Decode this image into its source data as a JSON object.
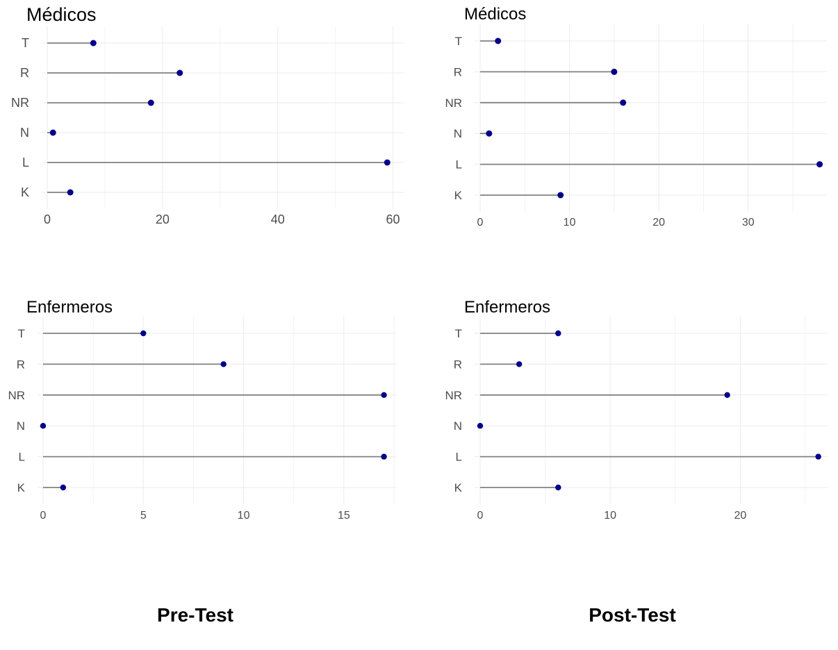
{
  "captions": {
    "left": "Pre-Test",
    "right": "Post-Test"
  },
  "colors": {
    "point": "#00008B",
    "segment": "#808080",
    "grid": "#ebebeb"
  },
  "chart_data": [
    {
      "type": "lollipop",
      "title": "Médicos",
      "categories": [
        "T",
        "R",
        "NR",
        "N",
        "L",
        "K"
      ],
      "values": [
        8,
        23,
        18,
        1,
        59,
        4
      ],
      "xlim": [
        0,
        61.5
      ],
      "xticks": [
        0,
        20,
        40,
        60
      ],
      "grid": true
    },
    {
      "type": "lollipop",
      "title": "Médicos",
      "categories": [
        "T",
        "R",
        "NR",
        "N",
        "L",
        "K"
      ],
      "values": [
        2,
        15,
        16,
        1,
        38,
        9
      ],
      "xlim": [
        0,
        38.5
      ],
      "xticks": [
        0,
        10,
        20,
        30
      ],
      "grid": true
    },
    {
      "type": "lollipop",
      "title": "Enfermeros",
      "categories": [
        "T",
        "R",
        "NR",
        "N",
        "L",
        "K"
      ],
      "values": [
        5,
        9,
        17,
        0,
        17,
        1
      ],
      "xlim": [
        0,
        17.5
      ],
      "xticks": [
        0,
        5,
        10,
        15
      ],
      "grid": true
    },
    {
      "type": "lollipop",
      "title": "Enfermeros",
      "categories": [
        "T",
        "R",
        "NR",
        "N",
        "L",
        "K"
      ],
      "values": [
        6,
        3,
        19,
        0,
        26,
        6
      ],
      "xlim": [
        0,
        26.5
      ],
      "xticks": [
        0,
        10,
        20
      ],
      "grid": true
    }
  ]
}
